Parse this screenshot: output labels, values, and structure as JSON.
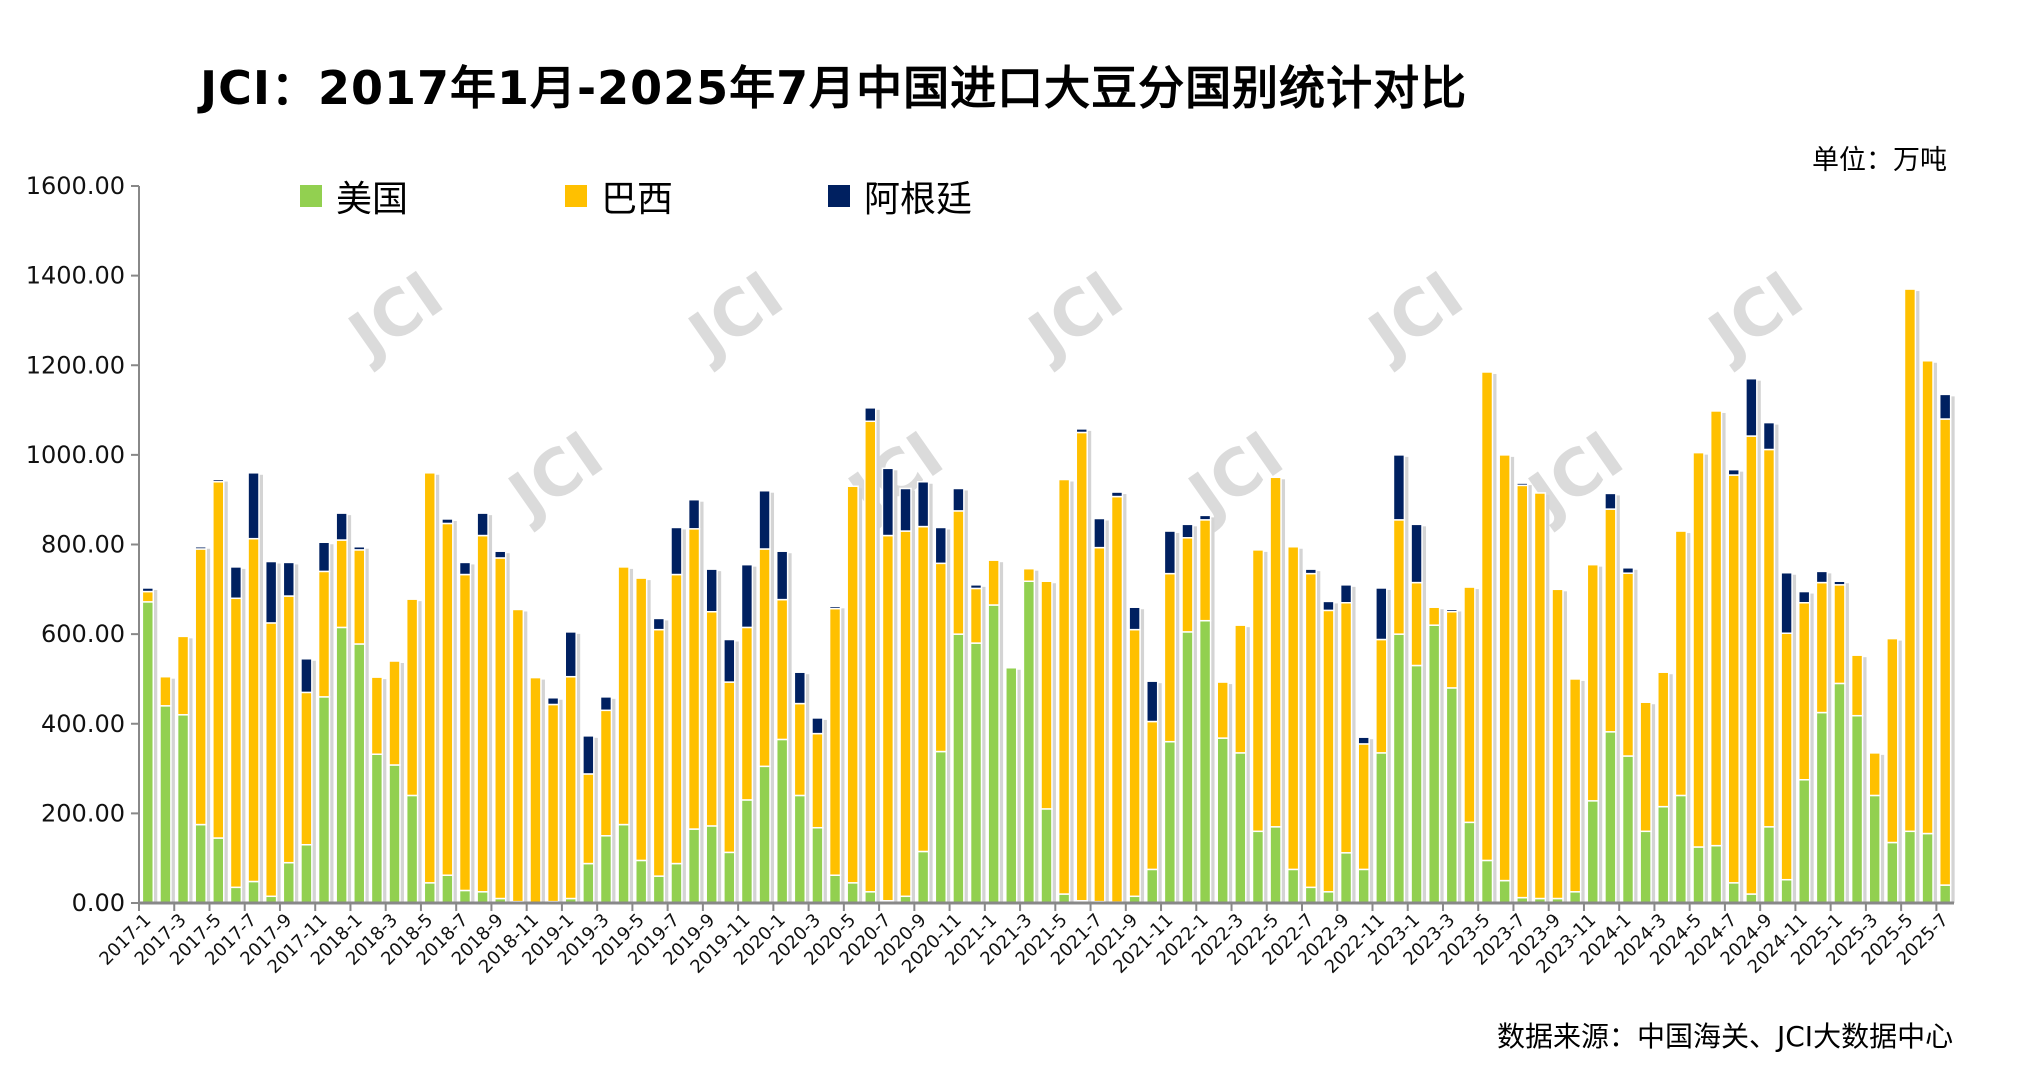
{
  "title": "JCI：2017年1月-2025年7月中国进口大豆分国别统计对比",
  "unit_label": "单位：万吨",
  "source_label": "数据来源：中国海关、JCI大数据中心",
  "watermark": "JCI",
  "colors": {
    "us": "#92d050",
    "brazil": "#ffc000",
    "argentina": "#002060"
  },
  "chart_data": {
    "type": "bar",
    "stacked": true,
    "title": "JCI：2017年1月-2025年7月中国进口大豆分国别统计对比",
    "ylabel": "单位：万吨",
    "ylim": [
      0,
      1600
    ],
    "yticks": [
      "0.00",
      "200.00",
      "400.00",
      "600.00",
      "800.00",
      "1000.00",
      "1200.00",
      "1400.00",
      "1600.00"
    ],
    "legend_position": "top",
    "categories": [
      "2017-1",
      "2017-2",
      "2017-3",
      "2017-4",
      "2017-5",
      "2017-6",
      "2017-7",
      "2017-8",
      "2017-9",
      "2017-10",
      "2017-11",
      "2017-12",
      "2018-1",
      "2018-2",
      "2018-3",
      "2018-4",
      "2018-5",
      "2018-6",
      "2018-7",
      "2018-8",
      "2018-9",
      "2018-10",
      "2018-11",
      "2018-12",
      "2019-1",
      "2019-2",
      "2019-3",
      "2019-4",
      "2019-5",
      "2019-6",
      "2019-7",
      "2019-8",
      "2019-9",
      "2019-10",
      "2019-11",
      "2019-12",
      "2020-1",
      "2020-2",
      "2020-3",
      "2020-4",
      "2020-5",
      "2020-6",
      "2020-7",
      "2020-8",
      "2020-9",
      "2020-10",
      "2020-11",
      "2020-12",
      "2021-1",
      "2021-2",
      "2021-3",
      "2021-4",
      "2021-5",
      "2021-6",
      "2021-7",
      "2021-8",
      "2021-9",
      "2021-10",
      "2021-11",
      "2021-12",
      "2022-1",
      "2022-2",
      "2022-3",
      "2022-4",
      "2022-5",
      "2022-6",
      "2022-7",
      "2022-8",
      "2022-9",
      "2022-10",
      "2022-11",
      "2022-12",
      "2023-1",
      "2023-2",
      "2023-3",
      "2023-4",
      "2023-5",
      "2023-6",
      "2023-7",
      "2023-8",
      "2023-9",
      "2023-10",
      "2023-11",
      "2023-12",
      "2024-1",
      "2024-2",
      "2024-3",
      "2024-4",
      "2024-5",
      "2024-6",
      "2024-7",
      "2024-8",
      "2024-9",
      "2024-10",
      "2024-11",
      "2024-12",
      "2025-1",
      "2025-2",
      "2025-3",
      "2025-4",
      "2025-5",
      "2025-6",
      "2025-7"
    ],
    "series": [
      {
        "name": "美国",
        "values": [
          672,
          440,
          420,
          175,
          145,
          35,
          48,
          15,
          90,
          130,
          460,
          615,
          578,
          332,
          308,
          240,
          45,
          62,
          28,
          25,
          10,
          3,
          0,
          3,
          10,
          88,
          150,
          175,
          95,
          60,
          88,
          165,
          172,
          113,
          230,
          305,
          365,
          240,
          168,
          62,
          45,
          25,
          5,
          15,
          115,
          338,
          600,
          580,
          665,
          525,
          718,
          210,
          20,
          5,
          3,
          2,
          15,
          75,
          360,
          605,
          630,
          368,
          335,
          160,
          170,
          75,
          35,
          25,
          112,
          75,
          335,
          600,
          530,
          620,
          480,
          180,
          95,
          50,
          12,
          10,
          10,
          25,
          228,
          382,
          328,
          160,
          215,
          240,
          125,
          128,
          45,
          20,
          170,
          52,
          275,
          425,
          490,
          418,
          240,
          135,
          160,
          155,
          40
        ]
      },
      {
        "name": "巴西",
        "values": [
          23,
          65,
          175,
          615,
          795,
          645,
          765,
          610,
          595,
          340,
          280,
          195,
          210,
          172,
          232,
          438,
          915,
          785,
          705,
          795,
          760,
          652,
          503,
          440,
          495,
          200,
          280,
          575,
          630,
          550,
          645,
          670,
          478,
          380,
          385,
          485,
          312,
          205,
          210,
          595,
          885,
          1050,
          815,
          815,
          725,
          420,
          275,
          122,
          100,
          0,
          28,
          508,
          925,
          1045,
          790,
          905,
          595,
          330,
          375,
          210,
          225,
          125,
          285,
          628,
          780,
          720,
          700,
          628,
          558,
          280,
          253,
          255,
          185,
          40,
          170,
          525,
          1090,
          950,
          920,
          905,
          690,
          475,
          527,
          497,
          408,
          288,
          300,
          590,
          880,
          970,
          910,
          1022,
          842,
          550,
          395,
          290,
          220,
          135,
          95,
          455,
          1210,
          1055,
          1040
        ]
      },
      {
        "name": "阿根廷",
        "values": [
          8,
          0,
          0,
          5,
          5,
          70,
          147,
          137,
          75,
          75,
          65,
          60,
          7,
          0,
          0,
          0,
          0,
          10,
          27,
          50,
          15,
          0,
          0,
          15,
          100,
          85,
          30,
          0,
          0,
          25,
          105,
          65,
          95,
          95,
          140,
          130,
          108,
          70,
          35,
          5,
          0,
          30,
          150,
          95,
          100,
          80,
          50,
          8,
          0,
          0,
          0,
          0,
          0,
          8,
          65,
          10,
          50,
          90,
          95,
          30,
          10,
          0,
          0,
          0,
          0,
          0,
          10,
          20,
          40,
          15,
          115,
          145,
          130,
          0,
          5,
          0,
          0,
          0,
          5,
          0,
          0,
          0,
          0,
          35,
          12,
          0,
          0,
          0,
          0,
          0,
          12,
          128,
          60,
          135,
          25,
          25,
          8,
          0,
          0,
          0,
          0,
          0,
          55
        ]
      }
    ]
  }
}
